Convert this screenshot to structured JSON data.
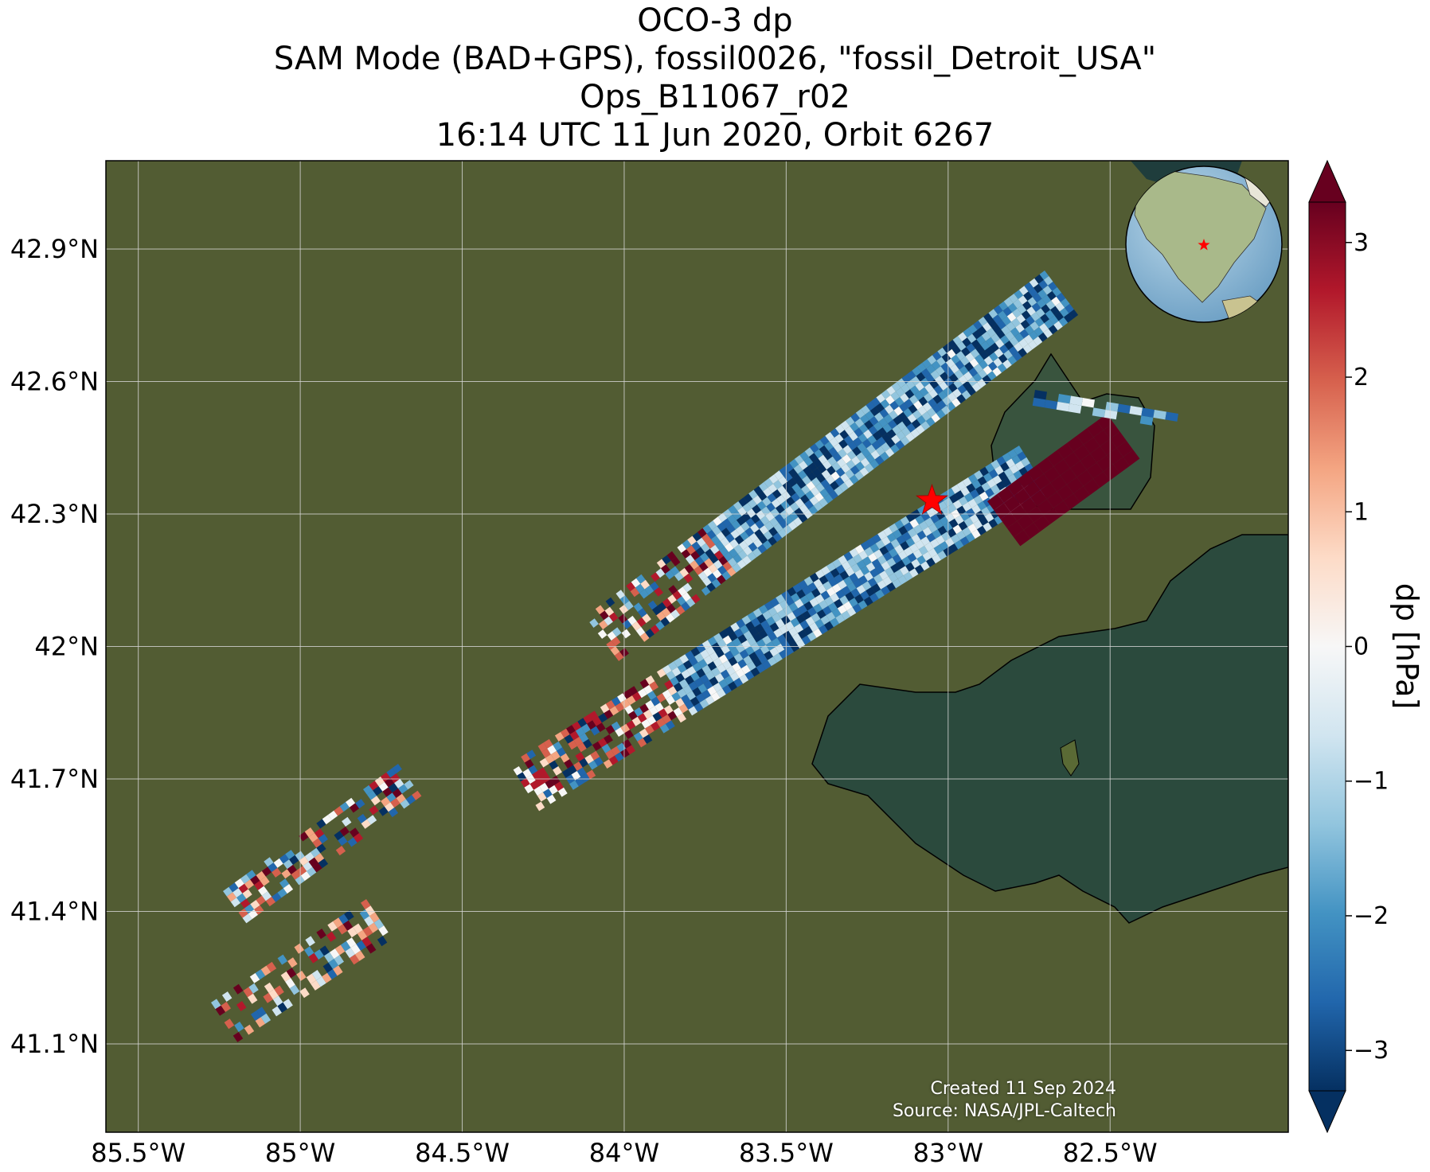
{
  "title": {
    "line1": "OCO-3 dp",
    "line2": "SAM Mode (BAD+GPS), fossil0026, \"fossil_Detroit_USA\"",
    "line3": "Ops_B11067_r02",
    "line4": "16:14 UTC 11 Jun 2020, Orbit 6267"
  },
  "map": {
    "lon_range": [
      -85.6,
      -81.95
    ],
    "lat_range": [
      40.9,
      43.1
    ],
    "lon_ticks": [
      {
        "value": -85.5,
        "label": "85.5°W"
      },
      {
        "value": -85.0,
        "label": "85°W"
      },
      {
        "value": -84.5,
        "label": "84.5°W"
      },
      {
        "value": -84.0,
        "label": "84°W"
      },
      {
        "value": -83.5,
        "label": "83.5°W"
      },
      {
        "value": -83.0,
        "label": "83°W"
      },
      {
        "value": -82.5,
        "label": "82.5°W"
      }
    ],
    "lat_ticks": [
      {
        "value": 42.9,
        "label": "42.9°N"
      },
      {
        "value": 42.6,
        "label": "42.6°N"
      },
      {
        "value": 42.3,
        "label": "42.3°N"
      },
      {
        "value": 42.0,
        "label": "42°N"
      },
      {
        "value": 41.7,
        "label": "41.7°N"
      },
      {
        "value": 41.4,
        "label": "41.4°N"
      },
      {
        "value": 41.1,
        "label": "41.1°N"
      }
    ],
    "target": {
      "lon": -83.05,
      "lat": 42.33,
      "marker": "red-star-icon"
    },
    "credit_line1": "Created 11 Sep 2024",
    "credit_line2": "Source: NASA/JPL-Caltech",
    "colors": {
      "land": "#4a5a2e",
      "water": "#2a4a3e",
      "grid": "#d8d8d8",
      "star": "#ff0000"
    }
  },
  "colorbar": {
    "label": "dp [hPa]",
    "range": [
      -3.3,
      3.3
    ],
    "colormap": "RdBu_r",
    "ticks": [
      {
        "value": 3,
        "label": "3"
      },
      {
        "value": 2,
        "label": "2"
      },
      {
        "value": 1,
        "label": "1"
      },
      {
        "value": 0,
        "label": "0"
      },
      {
        "value": -1,
        "label": "−1"
      },
      {
        "value": -2,
        "label": "−2"
      },
      {
        "value": -3,
        "label": "−3"
      }
    ],
    "extend": "both"
  },
  "inset_globe": {
    "icon": "globe-icon",
    "marker": "red-star-icon"
  }
}
